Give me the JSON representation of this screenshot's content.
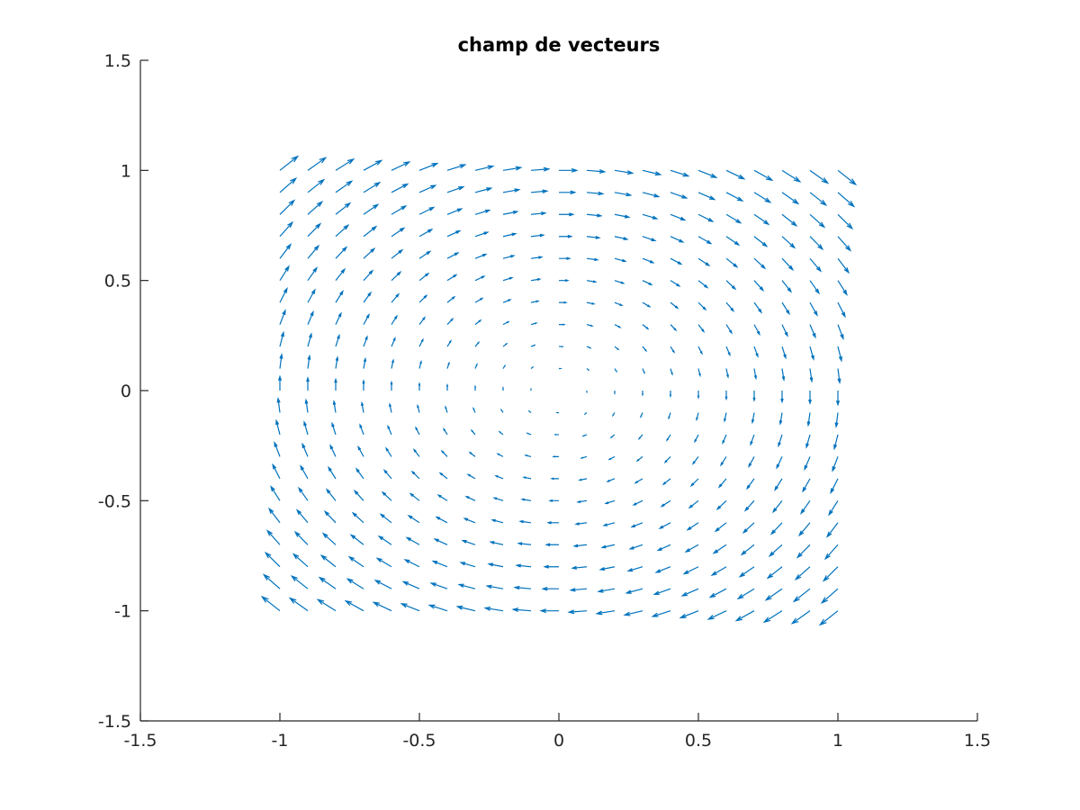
{
  "chart_data": {
    "type": "quiver",
    "title": "champ de vecteurs",
    "xlabel": "",
    "ylabel": "",
    "xlim": [
      -1.5,
      1.5
    ],
    "ylim": [
      -1.5,
      1.5
    ],
    "xticks": [
      -1.5,
      -1,
      -0.5,
      0,
      0.5,
      1,
      1.5
    ],
    "yticks": [
      -1.5,
      -1,
      -0.5,
      0,
      0.5,
      1,
      1.5
    ],
    "xtick_labels": [
      "-1.5",
      "-1",
      "-0.5",
      "0",
      "0.5",
      "1",
      "1.5"
    ],
    "ytick_labels": [
      "-1.5",
      "-1",
      "-0.5",
      "0",
      "0.5",
      "1",
      "1.5"
    ],
    "grid": false,
    "box": "left-bottom axes only",
    "color": "#0072bd",
    "field": {
      "u": "y",
      "v": "-x"
    },
    "grid_x": {
      "start": -1,
      "stop": 1,
      "step": 0.1
    },
    "grid_y": {
      "start": -1,
      "stop": 1,
      "step": 0.1
    },
    "autoscale_factor": 0.9
  }
}
